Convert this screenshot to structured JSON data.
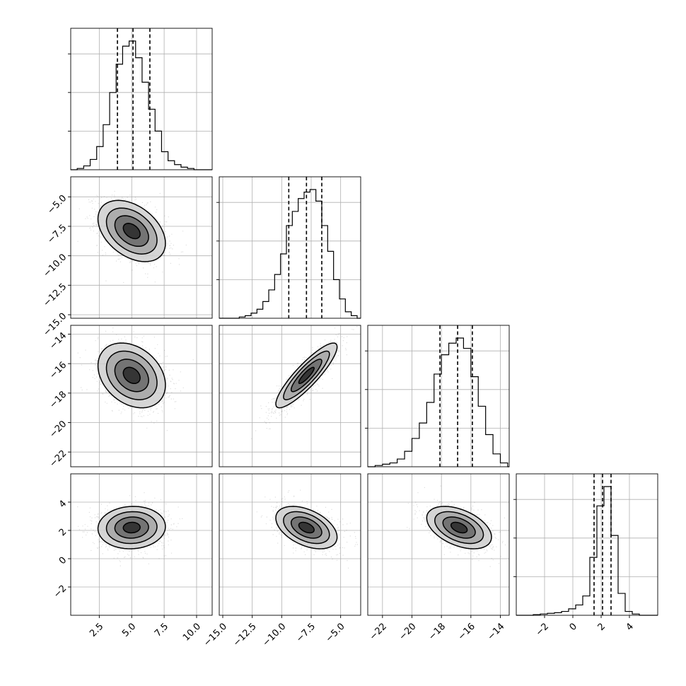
{
  "chart_data": {
    "type": "corner",
    "grid": true,
    "parameters": [
      {
        "range": [
          0.3,
          11.2
        ],
        "ticks": [
          2.5,
          5.0,
          7.5,
          10.0
        ],
        "tick_labels": [
          "2.5",
          "5.0",
          "7.5",
          "10.0"
        ],
        "quantiles": [
          3.9,
          5.1,
          6.4
        ],
        "bin_edges": [
          0.3,
          0.8,
          1.3,
          1.8,
          2.3,
          2.8,
          3.3,
          3.8,
          4.3,
          4.8,
          5.3,
          5.8,
          6.3,
          6.8,
          7.3,
          7.8,
          8.3,
          8.8,
          9.3,
          9.8,
          10.3
        ],
        "counts": [
          0,
          0.01,
          0.03,
          0.08,
          0.18,
          0.35,
          0.6,
          0.82,
          0.96,
          1.0,
          0.87,
          0.68,
          0.47,
          0.3,
          0.14,
          0.07,
          0.04,
          0.02,
          0.01,
          0
        ]
      },
      {
        "range": [
          -15.3,
          -3.3
        ],
        "ticks": [
          -15.0,
          -12.5,
          -10.0,
          -7.5,
          -5.0
        ],
        "tick_labels": [
          "−15.0",
          "−12.5",
          "−10.0",
          "−7.5",
          "−5.0"
        ],
        "quantiles": [
          -9.4,
          -7.9,
          -6.6
        ],
        "bin_edges": [
          -13.6,
          -13.1,
          -12.6,
          -12.1,
          -11.6,
          -11.1,
          -10.6,
          -10.1,
          -9.6,
          -9.1,
          -8.6,
          -8.1,
          -7.6,
          -7.1,
          -6.6,
          -6.1,
          -5.6,
          -5.1,
          -4.6,
          -4.1,
          -3.6
        ],
        "counts": [
          0.01,
          0.02,
          0.04,
          0.07,
          0.13,
          0.22,
          0.34,
          0.5,
          0.72,
          0.83,
          0.93,
          0.98,
          1.0,
          0.91,
          0.72,
          0.52,
          0.3,
          0.15,
          0.05,
          0.02
        ]
      },
      {
        "range": [
          -23.0,
          -13.4
        ],
        "ticks": [
          -22,
          -20,
          -18,
          -16,
          -14
        ],
        "tick_labels": [
          "−22",
          "−20",
          "−18",
          "−16",
          "−14"
        ],
        "quantiles": [
          -18.1,
          -16.9,
          -15.9
        ],
        "bin_edges": [
          -22.5,
          -22.0,
          -21.5,
          -21.0,
          -20.5,
          -20.0,
          -19.5,
          -19.0,
          -18.5,
          -18.0,
          -17.5,
          -17.0,
          -16.5,
          -16.0,
          -15.5,
          -15.0,
          -14.5,
          -14.0,
          -13.5
        ],
        "counts": [
          0.01,
          0.02,
          0.03,
          0.06,
          0.12,
          0.22,
          0.34,
          0.5,
          0.72,
          0.87,
          0.96,
          1.0,
          0.92,
          0.7,
          0.47,
          0.25,
          0.1,
          0.03
        ]
      },
      {
        "range": [
          -4.0,
          6.0
        ],
        "ticks": [
          -2,
          0,
          2,
          4
        ],
        "tick_labels": [
          "−2",
          "0",
          "2",
          "4"
        ],
        "quantiles": [
          1.5,
          2.1,
          2.7
        ],
        "bin_edges": [
          -3.3,
          -2.8,
          -2.3,
          -1.8,
          -1.3,
          -0.8,
          -0.3,
          0.2,
          0.7,
          1.2,
          1.7,
          2.2,
          2.7,
          3.2,
          3.7,
          4.2,
          4.7
        ],
        "counts": [
          0.0,
          0.005,
          0.01,
          0.015,
          0.02,
          0.03,
          0.05,
          0.08,
          0.15,
          0.45,
          0.85,
          1.0,
          0.62,
          0.17,
          0.03,
          0.01
        ]
      }
    ],
    "pairs": [
      {
        "x": 0,
        "y": 1,
        "mean": [
          5.0,
          -7.9
        ],
        "sd": [
          1.3,
          1.3
        ],
        "corr": -0.4
      },
      {
        "x": 0,
        "y": 2,
        "mean": [
          5.0,
          -16.8
        ],
        "sd": [
          1.3,
          1.1
        ],
        "corr": -0.3
      },
      {
        "x": 1,
        "y": 2,
        "mean": [
          -7.9,
          -16.8
        ],
        "sd": [
          1.3,
          1.1
        ],
        "corr": 0.88
      },
      {
        "x": 0,
        "y": 3,
        "mean": [
          5.0,
          2.2
        ],
        "sd": [
          1.3,
          0.75
        ],
        "corr": 0.05
      },
      {
        "x": 1,
        "y": 3,
        "mean": [
          -7.9,
          2.2
        ],
        "sd": [
          1.3,
          0.75
        ],
        "corr": -0.45
      },
      {
        "x": 2,
        "y": 3,
        "mean": [
          -16.8,
          2.2
        ],
        "sd": [
          1.1,
          0.75
        ],
        "corr": -0.45
      }
    ],
    "contour_levels_sigma": [
      0.5,
      1.0,
      1.5,
      2.0
    ]
  }
}
